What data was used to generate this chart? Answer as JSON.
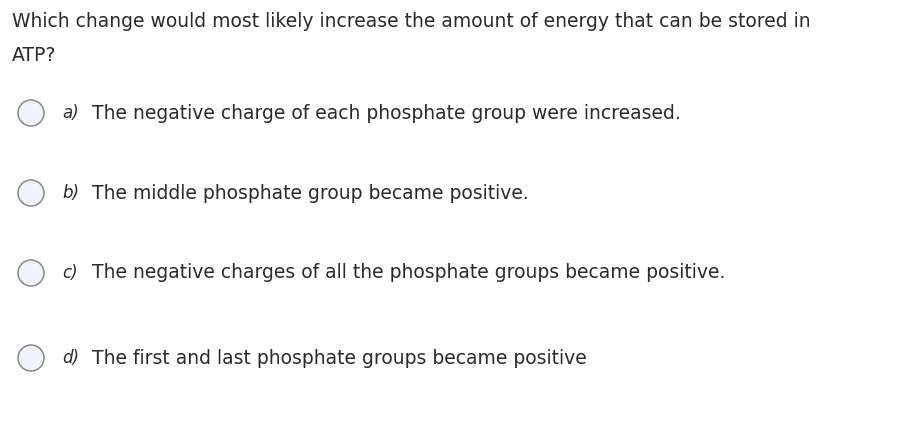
{
  "background_color": "#ffffff",
  "question_line1": "Which change would most likely increase the amount of energy that can be stored in",
  "question_line2": "ATP?",
  "options": [
    {
      "label": "a)",
      "text": "The negative charge of each phosphate group were increased."
    },
    {
      "label": "b)",
      "text": "The middle phosphate group became positive."
    },
    {
      "label": "c)",
      "text": "The negative charges of all the phosphate groups became positive."
    },
    {
      "label": "d)",
      "text": "The first and last phosphate groups became positive"
    }
  ],
  "question_fontsize": 13.5,
  "option_label_fontsize": 12,
  "option_text_fontsize": 13.5,
  "text_color": "#2a2a2a",
  "circle_color": "#888888",
  "circle_fill_color": "#f0f4ff",
  "font_family": "DejaVu Sans"
}
